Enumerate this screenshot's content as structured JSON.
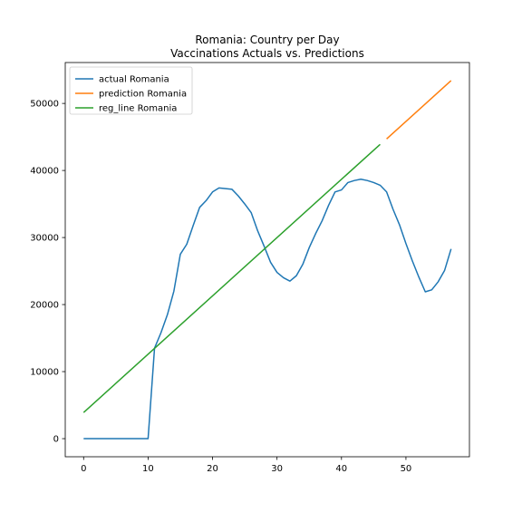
{
  "chart_data": {
    "type": "line",
    "title": "Romania: Country per Day",
    "subtitle": "Vaccinations Actuals vs. Predictions",
    "xlabel": "",
    "ylabel": "",
    "xlim": [
      -2.85,
      59.85
    ],
    "ylim": [
      -2700,
      56100
    ],
    "x_ticks": [
      0,
      10,
      20,
      30,
      40,
      50
    ],
    "y_ticks": [
      0,
      10000,
      20000,
      30000,
      40000,
      50000
    ],
    "grid": false,
    "legend_position": "top-left",
    "series": [
      {
        "name": "actual Romania",
        "color": "#1f77b4",
        "x": [
          0,
          1,
          2,
          3,
          4,
          5,
          6,
          7,
          8,
          9,
          10,
          11,
          12,
          13,
          14,
          15,
          16,
          17,
          18,
          19,
          20,
          21,
          22,
          23,
          24,
          25,
          26,
          27,
          28,
          29,
          30,
          31,
          32,
          33,
          34,
          35,
          36,
          37,
          38,
          39,
          40,
          41,
          42,
          43,
          44,
          45,
          46,
          47,
          48,
          49,
          50,
          51,
          52,
          53,
          54,
          55,
          56,
          57
        ],
        "y": [
          0,
          0,
          0,
          0,
          0,
          0,
          0,
          0,
          0,
          0,
          0,
          13500,
          15800,
          18500,
          22000,
          27500,
          29000,
          31800,
          34500,
          35500,
          36800,
          37400,
          37300,
          37200,
          36200,
          35000,
          33700,
          31000,
          28700,
          26300,
          24800,
          24000,
          23500,
          24300,
          26000,
          28500,
          30600,
          32500,
          34800,
          36800,
          37100,
          38200,
          38500,
          38700,
          38500,
          38200,
          37800,
          36800,
          34200,
          31900,
          29100,
          26500,
          24100,
          21900,
          22200,
          23400,
          25100,
          28300
        ]
      },
      {
        "name": "prediction Romania",
        "color": "#ff7f0e",
        "x": [
          47,
          57
        ],
        "y": [
          44700,
          53400
        ]
      },
      {
        "name": "reg_line Romania",
        "color": "#2ca02c",
        "x": [
          0,
          46
        ],
        "y": [
          3900,
          43900
        ]
      }
    ]
  }
}
